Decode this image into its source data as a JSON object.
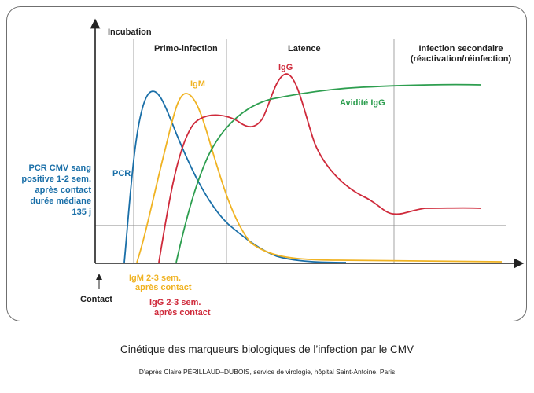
{
  "phases": {
    "incubation": "Incubation",
    "primo": "Primo-infection",
    "latence": "Latence",
    "secondaire_l1": "Infection secondaire",
    "secondaire_l2": "(réactivation/réinfection)"
  },
  "series": {
    "pcr": {
      "label": "PCR",
      "color": "#1a6fa8"
    },
    "igm": {
      "label": "IgM",
      "color": "#f0b323"
    },
    "igg": {
      "label": "IgG",
      "color": "#cf2a3b"
    },
    "avidite": {
      "label": "Avidité IgG",
      "color": "#2d9e4f"
    }
  },
  "annotations": {
    "pcr_note": [
      "PCR CMV sang",
      "positive 1-2 sem.",
      "après contact",
      "durée médiane",
      "135 j"
    ],
    "igm_note": [
      "IgM 2-3 sem.",
      "après contact"
    ],
    "igg_note": [
      "IgG 2-3 sem.",
      "après contact"
    ],
    "contact": "Contact"
  },
  "caption": {
    "title": "Cinétique des marqueurs biologiques de l’infection par le CMV",
    "source": "D’après Claire PÉRILLAUD–DUBOIS, service de virologie, hôpital Saint-Antoine, Paris"
  }
}
